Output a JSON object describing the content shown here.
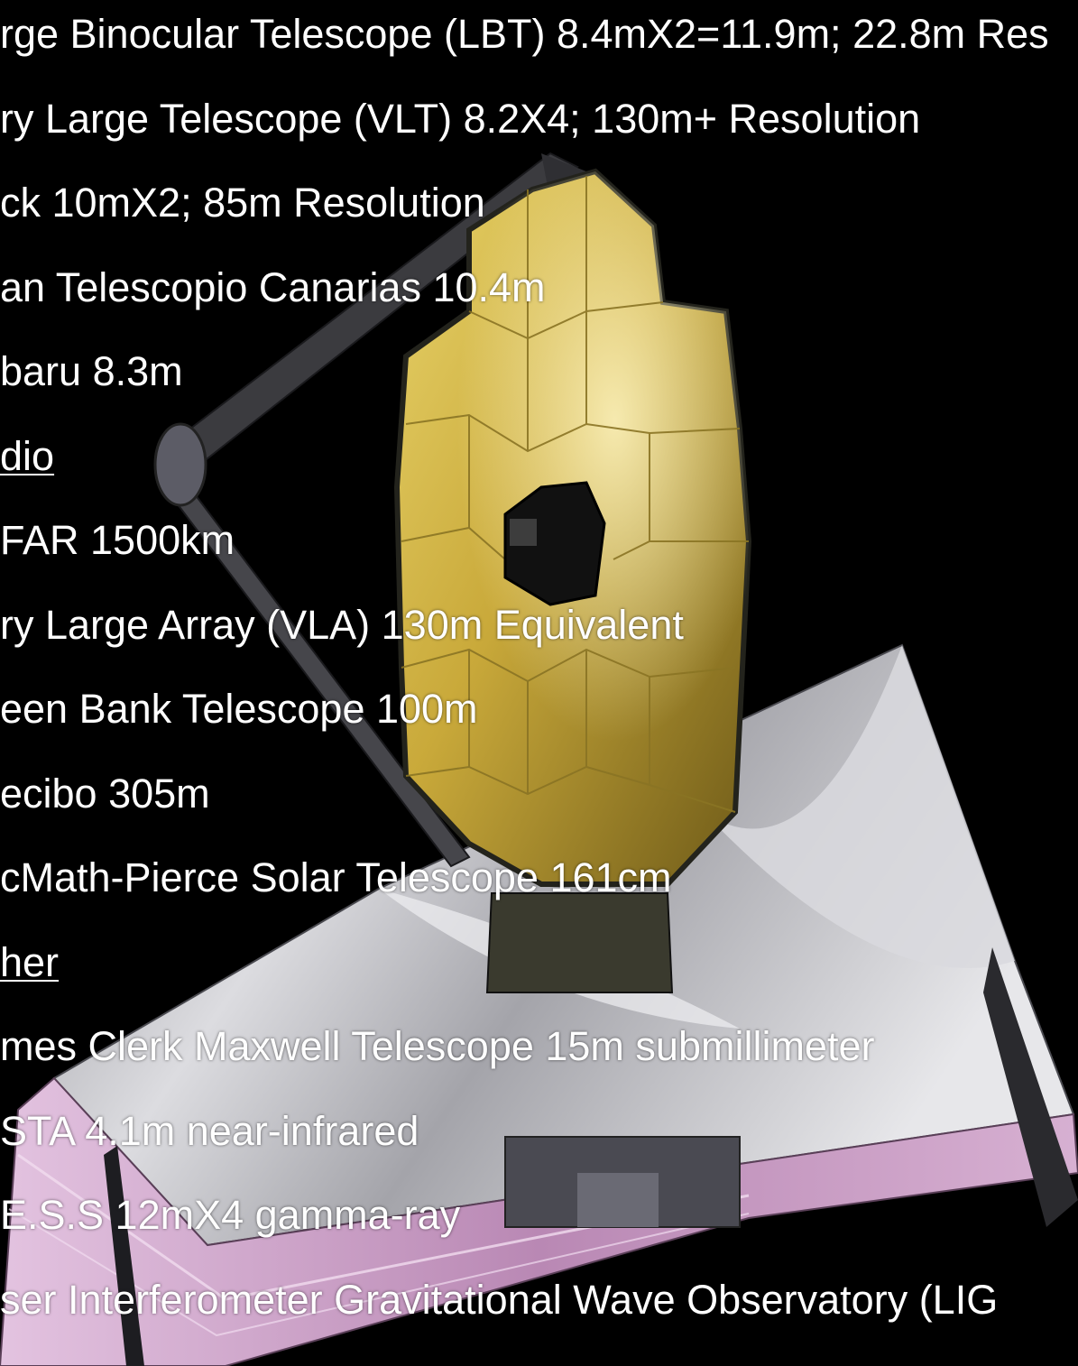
{
  "colors": {
    "background": "#000000",
    "text": "#ffffff",
    "mirror_gold": "#c9a93a",
    "sunshield_silver": "#b9b9be",
    "sunshield_pink": "#c89cc4"
  },
  "image": {
    "subject": "space-telescope-illustration"
  },
  "lines": [
    {
      "text": "rge Binocular Telescope (LBT) 8.4mX2=11.9m; 22.8m Res",
      "heading": false
    },
    {
      "text": "ry Large Telescope (VLT) 8.2X4; 130m+ Resolution",
      "heading": false
    },
    {
      "text": "ck 10mX2; 85m Resolution",
      "heading": false
    },
    {
      "text": "an Telescopio Canarias 10.4m",
      "heading": false
    },
    {
      "text": "baru 8.3m",
      "heading": false
    },
    {
      "text": "dio",
      "heading": true
    },
    {
      "text": "FAR 1500km",
      "heading": false
    },
    {
      "text": "ry Large Array (VLA) 130m Equivalent",
      "heading": false
    },
    {
      "text": "een Bank Telescope 100m",
      "heading": false
    },
    {
      "text": "ecibo 305m",
      "heading": false
    },
    {
      "text": "cMath-Pierce Solar Telescope  161cm",
      "heading": false
    },
    {
      "text": "her",
      "heading": true
    },
    {
      "text": "mes Clerk Maxwell Telescope 15m submillimeter",
      "heading": false
    },
    {
      "text": "STA 4.1m near-infrared",
      "heading": false
    },
    {
      "text": "E.S.S 12mX4 gamma-ray",
      "heading": false
    },
    {
      "text": "ser Interferometer Gravitational Wave Observatory  (LIG",
      "heading": false
    }
  ]
}
